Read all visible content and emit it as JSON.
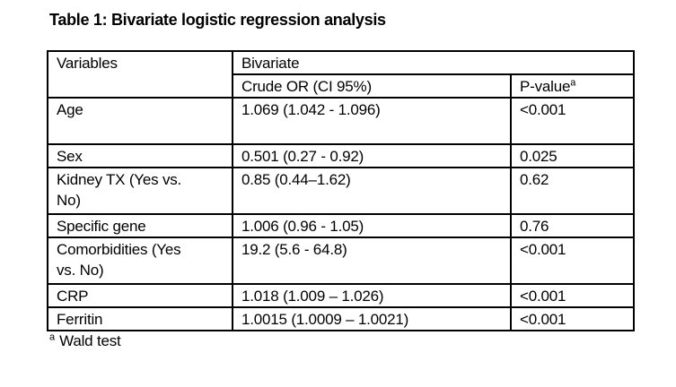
{
  "title": "Table 1: Bivariate logistic regression analysis",
  "table": {
    "header": {
      "variables": "Variables",
      "group": "Bivariate",
      "crude_or": "Crude OR (CI 95%)",
      "p_value": "P-value",
      "p_value_sup": "a"
    },
    "rows": [
      {
        "variable": "Age",
        "crude_or": "1.069 (1.042 - 1.096)",
        "p_value": "<0.001"
      },
      {
        "variable": "Sex",
        "crude_or": "0.501 (0.27 - 0.92)",
        "p_value": "0.025"
      },
      {
        "variable": "Kidney TX (Yes vs.\nNo)",
        "crude_or": "0.85 (0.44–1.62)",
        "p_value": "0.62"
      },
      {
        "variable": "Specific gene",
        "crude_or": "1.006 (0.96 - 1.05)",
        "p_value": "0.76"
      },
      {
        "variable": "Comorbidities (Yes\nvs. No)",
        "crude_or": "19.2 (5.6 - 64.8)",
        "p_value": "<0.001"
      },
      {
        "variable": "CRP",
        "crude_or": "1.018 (1.009 – 1.026)",
        "p_value": "<0.001"
      },
      {
        "variable": "Ferritin",
        "crude_or": "1.0015 (1.0009 – 1.0021)",
        "p_value": "<0.001"
      }
    ]
  },
  "footnote": {
    "sup": "a",
    "text": "Wald test"
  },
  "colors": {
    "text": "#000000",
    "border": "#000000",
    "background": "#ffffff"
  }
}
